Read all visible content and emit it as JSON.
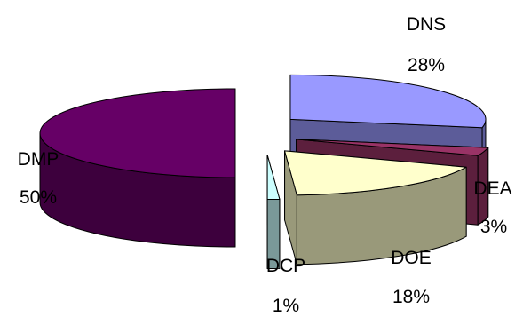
{
  "chart_data": {
    "type": "pie",
    "style": "3d-exploded",
    "title": "",
    "slices": [
      {
        "name": "DNS",
        "value": 28,
        "label": "28%",
        "color": "#9999ff",
        "side_color": "#5c5c99"
      },
      {
        "name": "DEA",
        "value": 3,
        "label": "3%",
        "color": "#993366",
        "side_color": "#5c1f3d"
      },
      {
        "name": "DOE",
        "value": 18,
        "label": "18%",
        "color": "#ffffcc",
        "side_color": "#99997a"
      },
      {
        "name": "DCP",
        "value": 1,
        "label": "1%",
        "color": "#ccffff",
        "side_color": "#7a9999"
      },
      {
        "name": "DMP",
        "value": 50,
        "label": "50%",
        "color": "#660066",
        "side_color": "#3d003d"
      }
    ],
    "legend": false
  }
}
